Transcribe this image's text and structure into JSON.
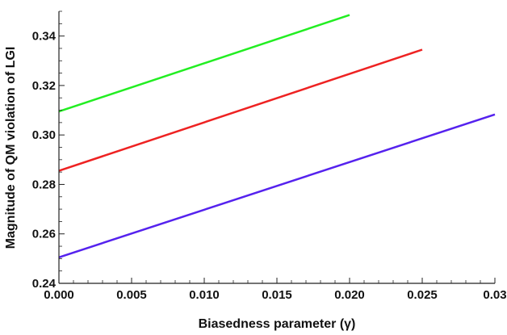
{
  "chart_data": {
    "type": "line",
    "title": "",
    "xlabel": "Biasedness parameter (γ)",
    "ylabel": "Magnitude of QM violation of LGI",
    "xlim": [
      0.0,
      0.03
    ],
    "ylim": [
      0.24,
      0.35
    ],
    "x_ticks": [
      "0.000",
      "0.005",
      "0.010",
      "0.015",
      "0.020",
      "0.025",
      "0.03"
    ],
    "y_ticks": [
      "0.24",
      "0.26",
      "0.28",
      "0.30",
      "0.32",
      "0.34"
    ],
    "grid": false,
    "series": [
      {
        "color": "#22ee22",
        "x": [
          0.0,
          0.02
        ],
        "y": [
          0.3095,
          0.3485
        ]
      },
      {
        "color": "#ee2222",
        "x": [
          0.0,
          0.025
        ],
        "y": [
          0.2855,
          0.3345
        ]
      },
      {
        "color": "#5522ee",
        "x": [
          0.0,
          0.03
        ],
        "y": [
          0.2505,
          0.3083
        ]
      }
    ]
  }
}
